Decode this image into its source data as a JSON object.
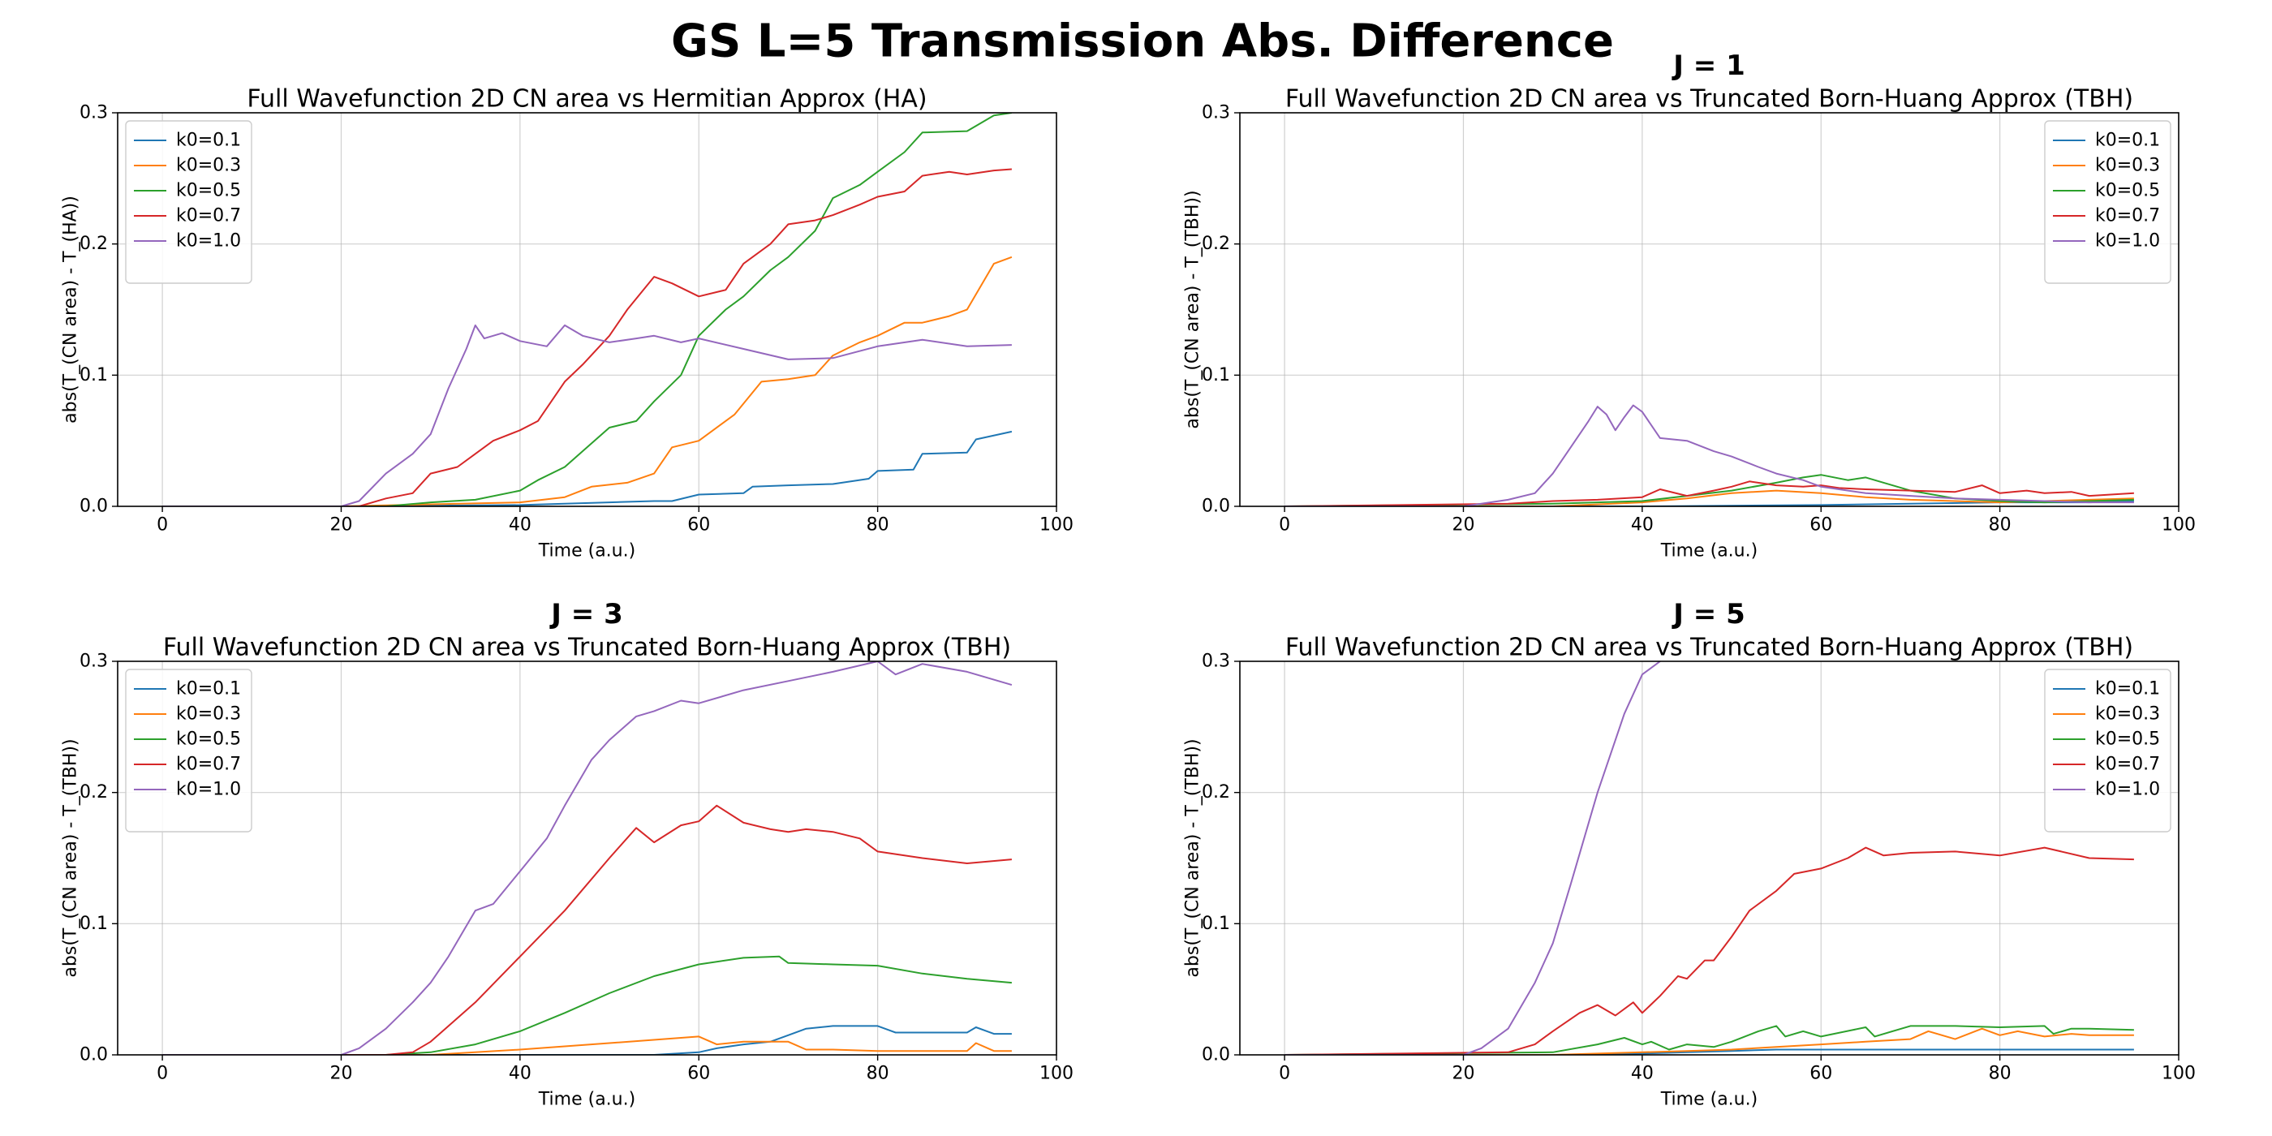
{
  "figure": {
    "suptitle": "GS L=5 Transmission Abs. Difference"
  },
  "chart_data": [
    {
      "type": "line",
      "head": "",
      "title": "Full Wavefunction 2D CN area vs Hermitian Approx (HA)",
      "xlabel": "Time (a.u.)",
      "ylabel": "abs(T_(CN area) - T_(HA))",
      "xlim": [
        -5,
        100
      ],
      "ylim": [
        0,
        0.3
      ],
      "xticks": [
        "0",
        "20",
        "40",
        "60",
        "80",
        "100"
      ],
      "yticks": [
        "0.0",
        "0.1",
        "0.2",
        "0.3"
      ],
      "grid": true,
      "legend_position": "upper-left",
      "series": [
        {
          "name": "k0=0.1",
          "color": "#1f77b4",
          "x": [
            0,
            20,
            40,
            50,
            55,
            57,
            60,
            65,
            66,
            70,
            75,
            79,
            80,
            84,
            85,
            90,
            91,
            95
          ],
          "y": [
            0,
            0,
            0.001,
            0.003,
            0.004,
            0.004,
            0.009,
            0.01,
            0.015,
            0.016,
            0.017,
            0.021,
            0.027,
            0.028,
            0.04,
            0.041,
            0.051,
            0.057
          ]
        },
        {
          "name": "k0=0.3",
          "color": "#ff7f0e",
          "x": [
            0,
            20,
            40,
            45,
            48,
            52,
            55,
            57,
            60,
            64,
            67,
            70,
            73,
            75,
            78,
            80,
            83,
            85,
            88,
            90,
            93,
            95
          ],
          "y": [
            0,
            0,
            0.003,
            0.007,
            0.015,
            0.018,
            0.025,
            0.045,
            0.05,
            0.07,
            0.095,
            0.097,
            0.1,
            0.115,
            0.125,
            0.13,
            0.14,
            0.14,
            0.145,
            0.15,
            0.185,
            0.19
          ]
        },
        {
          "name": "k0=0.5",
          "color": "#2ca02c",
          "x": [
            0,
            25,
            30,
            35,
            40,
            42,
            45,
            48,
            50,
            53,
            55,
            58,
            60,
            63,
            65,
            68,
            70,
            73,
            75,
            78,
            80,
            83,
            85,
            90,
            93,
            95
          ],
          "y": [
            0,
            0,
            0.003,
            0.005,
            0.012,
            0.02,
            0.03,
            0.048,
            0.06,
            0.065,
            0.08,
            0.1,
            0.13,
            0.15,
            0.16,
            0.18,
            0.19,
            0.21,
            0.235,
            0.245,
            0.255,
            0.27,
            0.285,
            0.286,
            0.298,
            0.3
          ]
        },
        {
          "name": "k0=0.7",
          "color": "#d62728",
          "x": [
            0,
            22,
            25,
            28,
            30,
            33,
            35,
            37,
            40,
            42,
            45,
            47,
            50,
            52,
            55,
            57,
            60,
            63,
            65,
            68,
            70,
            73,
            75,
            78,
            80,
            83,
            85,
            88,
            90,
            93,
            95
          ],
          "y": [
            0,
            0,
            0.006,
            0.01,
            0.025,
            0.03,
            0.04,
            0.05,
            0.058,
            0.065,
            0.095,
            0.108,
            0.13,
            0.15,
            0.175,
            0.17,
            0.16,
            0.165,
            0.185,
            0.2,
            0.215,
            0.218,
            0.222,
            0.23,
            0.236,
            0.24,
            0.252,
            0.255,
            0.253,
            0.256,
            0.257
          ]
        },
        {
          "name": "k0=1.0",
          "color": "#9467bd",
          "x": [
            0,
            20,
            22,
            25,
            28,
            30,
            32,
            34,
            35,
            36,
            38,
            40,
            43,
            45,
            47,
            50,
            53,
            55,
            58,
            60,
            65,
            70,
            75,
            80,
            85,
            90,
            95
          ],
          "y": [
            0,
            0,
            0.004,
            0.025,
            0.04,
            0.055,
            0.09,
            0.12,
            0.138,
            0.128,
            0.132,
            0.126,
            0.122,
            0.138,
            0.13,
            0.125,
            0.128,
            0.13,
            0.125,
            0.128,
            0.12,
            0.112,
            0.113,
            0.122,
            0.127,
            0.122,
            0.123
          ]
        }
      ]
    },
    {
      "type": "line",
      "head": "J = 1",
      "title": "Full Wavefunction 2D CN area vs Truncated Born-Huang Approx (TBH)",
      "xlabel": "Time (a.u.)",
      "ylabel": "abs(T_(CN area) - T_(TBH))",
      "xlim": [
        -5,
        100
      ],
      "ylim": [
        0,
        0.3
      ],
      "xticks": [
        "0",
        "20",
        "40",
        "60",
        "80",
        "100"
      ],
      "yticks": [
        "0.0",
        "0.1",
        "0.2",
        "0.3"
      ],
      "grid": true,
      "legend_position": "upper-right",
      "series": [
        {
          "name": "k0=0.1",
          "color": "#1f77b4",
          "x": [
            0,
            40,
            60,
            70,
            80,
            90,
            95
          ],
          "y": [
            0,
            0,
            0.001,
            0.002,
            0.003,
            0.003,
            0.004
          ]
        },
        {
          "name": "k0=0.3",
          "color": "#ff7f0e",
          "x": [
            0,
            30,
            40,
            45,
            50,
            55,
            60,
            65,
            70,
            75,
            80,
            85,
            90,
            95
          ],
          "y": [
            0,
            0,
            0.003,
            0.006,
            0.01,
            0.012,
            0.01,
            0.007,
            0.005,
            0.004,
            0.003,
            0.004,
            0.005,
            0.006
          ]
        },
        {
          "name": "k0=0.5",
          "color": "#2ca02c",
          "x": [
            0,
            30,
            40,
            45,
            50,
            55,
            58,
            60,
            63,
            65,
            70,
            75,
            80,
            85,
            90,
            95
          ],
          "y": [
            0,
            0.002,
            0.004,
            0.008,
            0.012,
            0.018,
            0.022,
            0.024,
            0.02,
            0.022,
            0.012,
            0.006,
            0.004,
            0.003,
            0.004,
            0.005
          ]
        },
        {
          "name": "k0=0.7",
          "color": "#d62728",
          "x": [
            0,
            25,
            30,
            35,
            40,
            42,
            45,
            48,
            50,
            52,
            55,
            58,
            60,
            62,
            65,
            70,
            75,
            78,
            80,
            83,
            85,
            88,
            90,
            95
          ],
          "y": [
            0,
            0.002,
            0.004,
            0.005,
            0.007,
            0.013,
            0.008,
            0.012,
            0.015,
            0.019,
            0.016,
            0.015,
            0.016,
            0.014,
            0.013,
            0.012,
            0.011,
            0.016,
            0.01,
            0.012,
            0.01,
            0.011,
            0.008,
            0.01
          ]
        },
        {
          "name": "k0=1.0",
          "color": "#9467bd",
          "x": [
            0,
            20,
            25,
            28,
            30,
            32,
            34,
            35,
            36,
            37,
            38,
            39,
            40,
            42,
            45,
            48,
            50,
            53,
            55,
            58,
            60,
            65,
            70,
            75,
            80,
            85,
            90,
            95
          ],
          "y": [
            0,
            0,
            0.005,
            0.01,
            0.025,
            0.045,
            0.065,
            0.076,
            0.07,
            0.058,
            0.068,
            0.077,
            0.072,
            0.052,
            0.05,
            0.042,
            0.038,
            0.03,
            0.025,
            0.02,
            0.015,
            0.01,
            0.008,
            0.006,
            0.005,
            0.004,
            0.003,
            0.003
          ]
        }
      ]
    },
    {
      "type": "line",
      "head": "J = 3",
      "title": "Full Wavefunction 2D CN area vs Truncated Born-Huang Approx (TBH)",
      "xlabel": "Time (a.u.)",
      "ylabel": "abs(T_(CN area) - T_(TBH))",
      "xlim": [
        -5,
        100
      ],
      "ylim": [
        0,
        0.3
      ],
      "xticks": [
        "0",
        "20",
        "40",
        "60",
        "80",
        "100"
      ],
      "yticks": [
        "0.0",
        "0.1",
        "0.2",
        "0.3"
      ],
      "grid": true,
      "legend_position": "upper-left",
      "series": [
        {
          "name": "k0=0.1",
          "color": "#1f77b4",
          "x": [
            0,
            55,
            60,
            62,
            65,
            68,
            70,
            72,
            75,
            78,
            80,
            82,
            85,
            88,
            90,
            91,
            93,
            95
          ],
          "y": [
            0,
            0,
            0.002,
            0.005,
            0.008,
            0.01,
            0.015,
            0.02,
            0.022,
            0.022,
            0.022,
            0.017,
            0.017,
            0.017,
            0.017,
            0.021,
            0.016,
            0.016
          ]
        },
        {
          "name": "k0=0.3",
          "color": "#ff7f0e",
          "x": [
            0,
            30,
            40,
            50,
            60,
            62,
            65,
            70,
            72,
            75,
            80,
            85,
            90,
            91,
            93,
            95
          ],
          "y": [
            0,
            0,
            0.004,
            0.009,
            0.014,
            0.008,
            0.01,
            0.01,
            0.004,
            0.004,
            0.003,
            0.003,
            0.003,
            0.009,
            0.003,
            0.003
          ]
        },
        {
          "name": "k0=0.5",
          "color": "#2ca02c",
          "x": [
            0,
            25,
            30,
            35,
            40,
            45,
            50,
            55,
            60,
            65,
            69,
            70,
            75,
            80,
            85,
            90,
            95
          ],
          "y": [
            0,
            0,
            0.002,
            0.008,
            0.018,
            0.032,
            0.047,
            0.06,
            0.069,
            0.074,
            0.075,
            0.07,
            0.069,
            0.068,
            0.062,
            0.058,
            0.055
          ]
        },
        {
          "name": "k0=0.7",
          "color": "#d62728",
          "x": [
            0,
            25,
            28,
            30,
            35,
            40,
            45,
            50,
            53,
            55,
            58,
            60,
            62,
            65,
            68,
            70,
            72,
            75,
            78,
            80,
            85,
            90,
            95
          ],
          "y": [
            0,
            0,
            0.002,
            0.01,
            0.04,
            0.075,
            0.11,
            0.15,
            0.173,
            0.162,
            0.175,
            0.178,
            0.19,
            0.177,
            0.172,
            0.17,
            0.172,
            0.17,
            0.165,
            0.155,
            0.15,
            0.146,
            0.149
          ]
        },
        {
          "name": "k0=1.0",
          "color": "#9467bd",
          "x": [
            0,
            20,
            22,
            25,
            28,
            30,
            32,
            35,
            37,
            40,
            43,
            45,
            48,
            50,
            53,
            55,
            58,
            60,
            65,
            70,
            75,
            80,
            82,
            85,
            90,
            95
          ],
          "y": [
            0,
            0,
            0.005,
            0.02,
            0.04,
            0.055,
            0.075,
            0.11,
            0.115,
            0.14,
            0.165,
            0.19,
            0.225,
            0.24,
            0.258,
            0.262,
            0.27,
            0.268,
            0.278,
            0.285,
            0.292,
            0.3,
            0.29,
            0.298,
            0.292,
            0.282
          ]
        }
      ]
    },
    {
      "type": "line",
      "head": "J = 5",
      "title": "Full Wavefunction 2D CN area vs Truncated Born-Huang Approx (TBH)",
      "xlabel": "Time (a.u.)",
      "ylabel": "abs(T_(CN area) - T_(TBH))",
      "xlim": [
        -5,
        100
      ],
      "ylim": [
        0,
        0.3
      ],
      "xticks": [
        "0",
        "20",
        "40",
        "60",
        "80",
        "100"
      ],
      "yticks": [
        "0.0",
        "0.1",
        "0.2",
        "0.3"
      ],
      "grid": true,
      "legend_position": "upper-right",
      "series": [
        {
          "name": "k0=0.1",
          "color": "#1f77b4",
          "x": [
            0,
            30,
            40,
            45,
            50,
            55,
            60,
            70,
            80,
            90,
            95
          ],
          "y": [
            0,
            0,
            0.001,
            0.002,
            0.003,
            0.004,
            0.004,
            0.004,
            0.004,
            0.004,
            0.004
          ]
        },
        {
          "name": "k0=0.3",
          "color": "#ff7f0e",
          "x": [
            0,
            30,
            40,
            45,
            50,
            55,
            60,
            65,
            70,
            72,
            75,
            78,
            80,
            82,
            85,
            88,
            90,
            95
          ],
          "y": [
            0,
            0,
            0.002,
            0.003,
            0.004,
            0.006,
            0.008,
            0.01,
            0.012,
            0.018,
            0.012,
            0.02,
            0.015,
            0.018,
            0.014,
            0.016,
            0.015,
            0.015
          ]
        },
        {
          "name": "k0=0.5",
          "color": "#2ca02c",
          "x": [
            0,
            30,
            35,
            38,
            40,
            41,
            43,
            45,
            48,
            50,
            53,
            55,
            56,
            58,
            60,
            65,
            66,
            70,
            75,
            80,
            85,
            86,
            88,
            90,
            95
          ],
          "y": [
            0,
            0.002,
            0.008,
            0.013,
            0.008,
            0.01,
            0.004,
            0.008,
            0.006,
            0.01,
            0.018,
            0.022,
            0.014,
            0.018,
            0.014,
            0.021,
            0.014,
            0.022,
            0.022,
            0.021,
            0.022,
            0.016,
            0.02,
            0.02,
            0.019
          ]
        },
        {
          "name": "k0=0.7",
          "color": "#d62728",
          "x": [
            0,
            25,
            28,
            30,
            33,
            35,
            37,
            39,
            40,
            42,
            44,
            45,
            47,
            48,
            50,
            52,
            55,
            57,
            60,
            63,
            65,
            67,
            70,
            75,
            80,
            85,
            90,
            95
          ],
          "y": [
            0,
            0.002,
            0.008,
            0.018,
            0.032,
            0.038,
            0.03,
            0.04,
            0.032,
            0.045,
            0.06,
            0.058,
            0.072,
            0.072,
            0.09,
            0.11,
            0.125,
            0.138,
            0.142,
            0.15,
            0.158,
            0.152,
            0.154,
            0.155,
            0.152,
            0.158,
            0.15,
            0.149
          ]
        },
        {
          "name": "k0=1.0",
          "color": "#9467bd",
          "x": [
            0,
            20,
            22,
            25,
            28,
            30,
            32,
            35,
            38,
            40,
            42,
            44
          ],
          "y": [
            0,
            0,
            0.005,
            0.02,
            0.055,
            0.085,
            0.13,
            0.2,
            0.26,
            0.29,
            0.3,
            0.31
          ]
        }
      ]
    }
  ]
}
